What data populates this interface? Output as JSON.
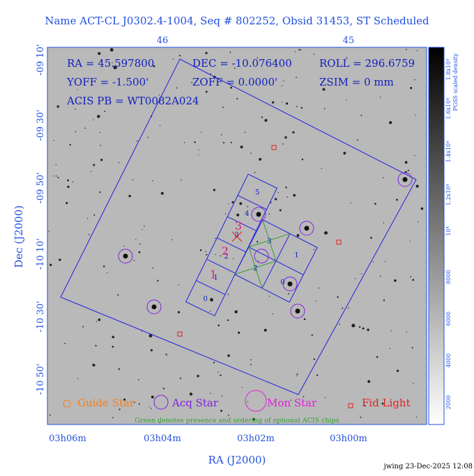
{
  "title": "Name ACT-CL J0302.4-1004, Seq # 802252, Obsid 31453, ST Scheduled",
  "top_ticks": [
    "46",
    "45"
  ],
  "left_ticks": [
    "-09 10'",
    "-09 30'",
    "-09 50'",
    "-10 10'",
    "-10 30'",
    "-10 50'"
  ],
  "bottom_ticks": [
    "03h06m",
    "03h04m",
    "03h02m",
    "03h00m"
  ],
  "x_label": "RA (J2000)",
  "y_label": "Dec (J2000)",
  "info": [
    "RA = 45.597800",
    "DEC = -10.076400",
    "ROLL = 296.6759",
    "YOFF =  -1.500'",
    "ZOFF =  0.0000'",
    "ZSIM = 0 mm",
    "ACIS PB = WT0082A024"
  ],
  "colorbar": {
    "label": "PGSS scaled density",
    "ticks": [
      "2000",
      "4000",
      "6000",
      "8000",
      "10⁴",
      "1.2x10⁴",
      "1.4x10⁴",
      "1.6x10⁴",
      "1.8x10⁴"
    ]
  },
  "acis_s_chips": [
    "0",
    "1",
    "2",
    "3",
    "4",
    "5"
  ],
  "acis_i_chips": [
    "3",
    "1",
    "2",
    "0"
  ],
  "aimpoint_labels": [
    "1",
    "2",
    "3"
  ],
  "legend": [
    "Guide Star",
    "Acq Star",
    "Mon Star",
    "Fid Light"
  ],
  "note": "Green denotes presence and ordering of optional ACIS chips",
  "footer": "jwing 23-Dec-2025 12:08"
}
